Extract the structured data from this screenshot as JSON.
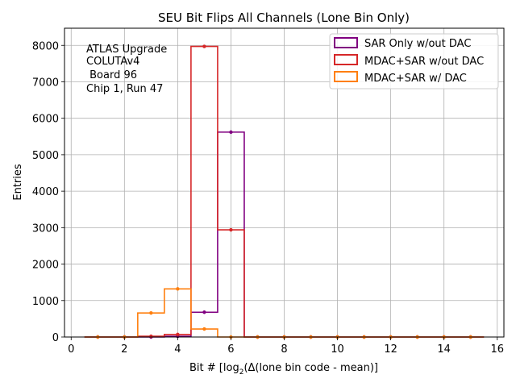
{
  "chart_data": {
    "type": "step",
    "title": "SEU Bit Flips All Channels (Lone Bin Only)",
    "xlabel": "Bit # [log",
    "xlabel_sub": "2",
    "xlabel_tail": "(Δ(lone bin code - mean)]",
    "ylabel": "Entries",
    "xlim": [
      -0.25,
      16.25
    ],
    "ylim": [
      0,
      8470
    ],
    "x_ticks": [
      0,
      2,
      4,
      6,
      8,
      10,
      12,
      14,
      16
    ],
    "y_ticks": [
      0,
      1000,
      2000,
      3000,
      4000,
      5000,
      6000,
      7000,
      8000
    ],
    "grid": true,
    "legend_position": "top-right",
    "annotation": [
      "ATLAS Upgrade",
      "COLUTAv4",
      " Board 96",
      "Chip 1, Run 47"
    ],
    "bin_centers": [
      1,
      2,
      3,
      4,
      5,
      6,
      7,
      8,
      9,
      10,
      11,
      12,
      13,
      14,
      15
    ],
    "series": [
      {
        "name": "SAR Only w/out DAC",
        "color": "#800080",
        "values": [
          0,
          0,
          0,
          20,
          680,
          5620,
          0,
          0,
          0,
          0,
          0,
          0,
          0,
          0,
          0
        ]
      },
      {
        "name": "MDAC+SAR w/out DAC",
        "color": "#d62728",
        "values": [
          0,
          0,
          20,
          70,
          7970,
          2940,
          0,
          0,
          0,
          0,
          0,
          0,
          0,
          0,
          0
        ]
      },
      {
        "name": "MDAC+SAR w/ DAC",
        "color": "#ff7f0e",
        "values": [
          0,
          0,
          660,
          1320,
          220,
          0,
          0,
          0,
          0,
          0,
          0,
          0,
          0,
          0,
          0
        ]
      }
    ]
  }
}
